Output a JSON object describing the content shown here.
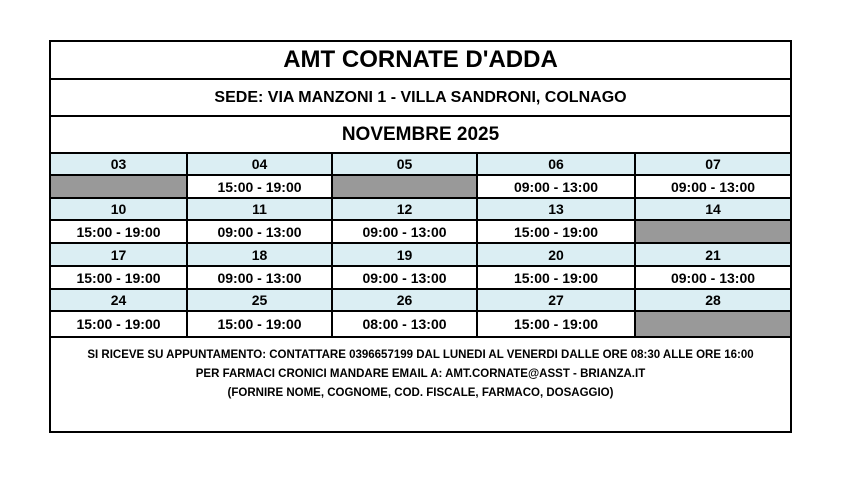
{
  "title": "AMT CORNATE D'ADDA",
  "sede": "SEDE: VIA MANZONI 1 - VILLA SANDRONI, COLNAGO",
  "month": "NOVEMBRE 2025",
  "colors": {
    "day_header": "#dbeef3",
    "closed": "#999999"
  },
  "weeks": [
    [
      {
        "day": "03",
        "time": null
      },
      {
        "day": "04",
        "time": "15:00 - 19:00"
      },
      {
        "day": "05",
        "time": null
      },
      {
        "day": "06",
        "time": "09:00 - 13:00"
      },
      {
        "day": "07",
        "time": "09:00 - 13:00"
      }
    ],
    [
      {
        "day": "10",
        "time": "15:00 - 19:00"
      },
      {
        "day": "11",
        "time": "09:00 - 13:00"
      },
      {
        "day": "12",
        "time": "09:00 - 13:00"
      },
      {
        "day": "13",
        "time": "15:00 - 19:00"
      },
      {
        "day": "14",
        "time": null
      }
    ],
    [
      {
        "day": "17",
        "time": "15:00 - 19:00"
      },
      {
        "day": "18",
        "time": "09:00 - 13:00"
      },
      {
        "day": "19",
        "time": "09:00 - 13:00"
      },
      {
        "day": "20",
        "time": "15:00 - 19:00"
      },
      {
        "day": "21",
        "time": "09:00 - 13:00"
      }
    ],
    [
      {
        "day": "24",
        "time": "15:00 - 19:00"
      },
      {
        "day": "25",
        "time": "15:00 - 19:00"
      },
      {
        "day": "26",
        "time": "08:00 - 13:00"
      },
      {
        "day": "27",
        "time": "15:00 - 19:00"
      },
      {
        "day": "28",
        "time": null
      }
    ]
  ],
  "footer": [
    "SI RICEVE SU APPUNTAMENTO: CONTATTARE 0396657199 DAL LUNEDI AL VENERDI DALLE ORE 08:30 ALLE ORE 16:00",
    "PER FARMACI CRONICI MANDARE EMAIL A: AMT.CORNATE@ASST - BRIANZA.IT",
    "(FORNIRE NOME, COGNOME, COD. FISCALE, FARMACO, DOSAGGIO)"
  ]
}
